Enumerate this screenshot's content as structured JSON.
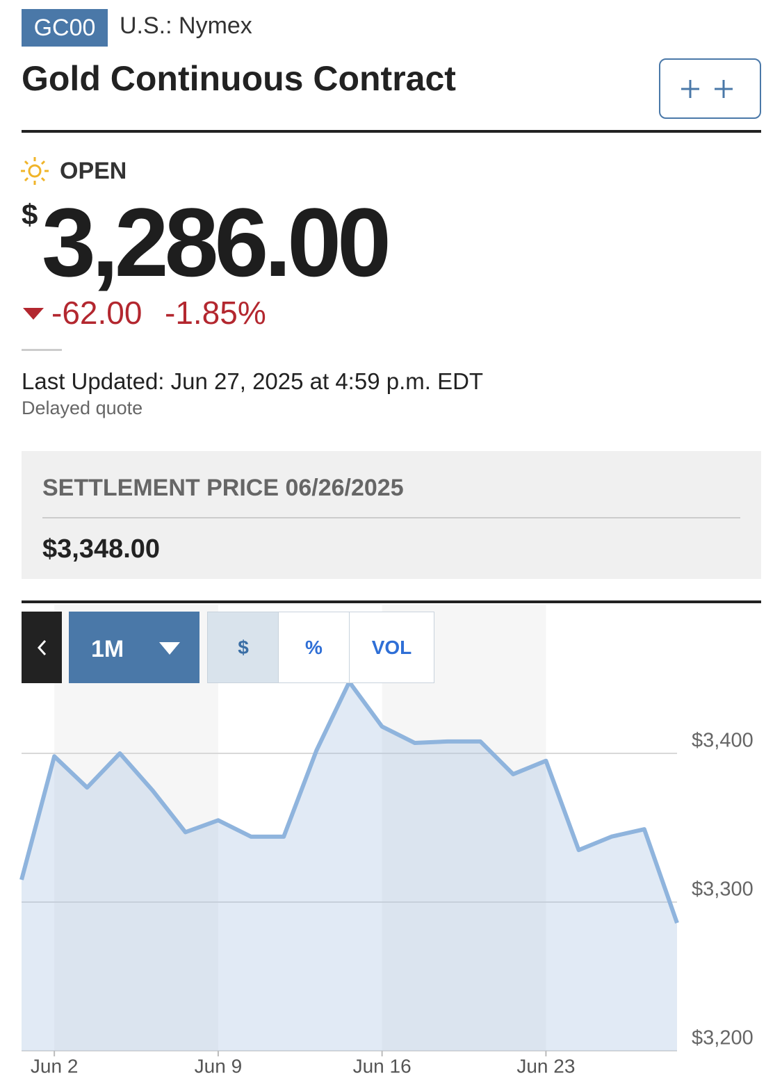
{
  "header": {
    "symbol": "GC00",
    "exchange": "U.S.: Nymex",
    "title": "Gold Continuous Contract"
  },
  "quote": {
    "status": "OPEN",
    "currency": "$",
    "price": "3,286.00",
    "change": "-62.00",
    "change_percent": "-1.85%",
    "last_updated": "Last Updated: Jun 27, 2025 at 4:59 p.m. EDT",
    "note": "Delayed quote"
  },
  "settlement": {
    "label": "SETTLEMENT PRICE 06/26/2025",
    "value": "$3,348.00"
  },
  "chart_controls": {
    "range": "1M",
    "modes": [
      "$",
      "%",
      "VOL"
    ]
  },
  "chart_data": {
    "type": "area",
    "categories": [
      null,
      "Jun 2",
      null,
      null,
      null,
      null,
      "Jun 9",
      null,
      null,
      null,
      null,
      "Jun 16",
      null,
      null,
      null,
      null,
      "Jun 23",
      null,
      null,
      null,
      null
    ],
    "values": [
      3315,
      3398,
      3377,
      3400,
      3375,
      3347,
      3355,
      3344,
      3344,
      3402,
      3448,
      3418,
      3407,
      3408,
      3408,
      3386,
      3395,
      3335,
      3344,
      3349,
      3286
    ],
    "color": "#8fb4dd",
    "ylim": [
      3200,
      3500
    ],
    "yticks": [
      {
        "value": 3200,
        "label": "$3,200"
      },
      {
        "value": 3300,
        "label": "$3,300"
      },
      {
        "value": 3400,
        "label": "$3,400"
      }
    ],
    "grid": true
  }
}
